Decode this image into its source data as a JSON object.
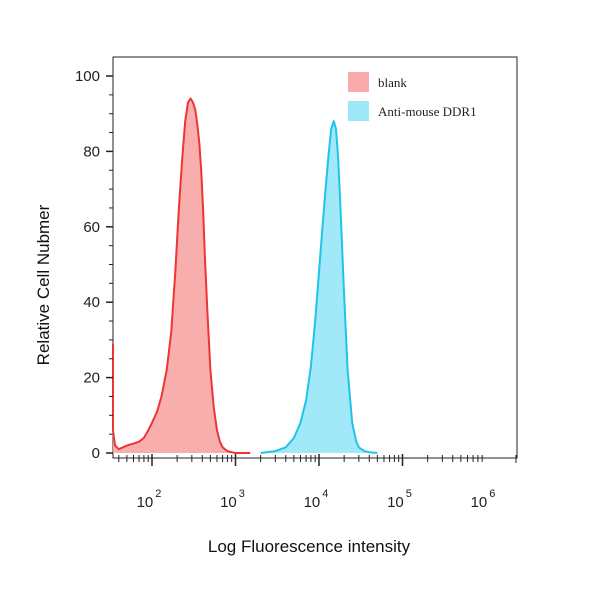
{
  "chart_data": {
    "type": "area",
    "xlabel": "Log Fluorescence intensity",
    "ylabel": "Relative Cell Nubmer",
    "x_scale": "log",
    "xlim": [
      30,
      300000
    ],
    "ylim": [
      0,
      100
    ],
    "x_ticks": [
      {
        "value": 100,
        "base": "10",
        "exp": "2"
      },
      {
        "value": 1000,
        "base": "10",
        "exp": "3"
      },
      {
        "value": 10000,
        "base": "10",
        "exp": "4"
      },
      {
        "value": 100000,
        "base": "10",
        "exp": "5"
      },
      {
        "value": 1000000,
        "base": "10",
        "exp": "6"
      }
    ],
    "y_ticks": [
      0,
      20,
      40,
      60,
      80,
      100
    ],
    "grid": false,
    "legend_position": "top-right",
    "series": [
      {
        "name": "blank",
        "fill": "#f9aaaa",
        "stroke": "#ee3535",
        "x": [
          30,
          32,
          34,
          36,
          40,
          45,
          50,
          60,
          70,
          80,
          90,
          100,
          115,
          130,
          150,
          170,
          190,
          210,
          230,
          250,
          270,
          290,
          310,
          330,
          350,
          370,
          390,
          410,
          430,
          460,
          500,
          550,
          600,
          650,
          700,
          800,
          900,
          1000,
          1200,
          1500
        ],
        "values": [
          29,
          16,
          6,
          2,
          1,
          1.5,
          2,
          2.5,
          3,
          4,
          6,
          8,
          11,
          15,
          22,
          32,
          48,
          65,
          78,
          88,
          93,
          94,
          93,
          91,
          87,
          82,
          74,
          64,
          52,
          38,
          22,
          12,
          6,
          3,
          1.5,
          0.5,
          0.2,
          0,
          0,
          0
        ]
      },
      {
        "name": "Anti-mouse DDR1",
        "fill": "#9ce8f8",
        "stroke": "#1ec4ec",
        "x": [
          2000,
          3000,
          4000,
          5000,
          6000,
          7000,
          8000,
          9000,
          10000,
          11000,
          12000,
          13000,
          14000,
          15000,
          16000,
          17000,
          18000,
          20000,
          22000,
          25000,
          28000,
          30000,
          35000,
          40000,
          50000
        ],
        "values": [
          0,
          0.5,
          1.5,
          4,
          8,
          14,
          23,
          35,
          48,
          60,
          70,
          79,
          86,
          88,
          86,
          78,
          66,
          42,
          22,
          8,
          3,
          1.5,
          0.5,
          0.2,
          0
        ]
      }
    ]
  }
}
